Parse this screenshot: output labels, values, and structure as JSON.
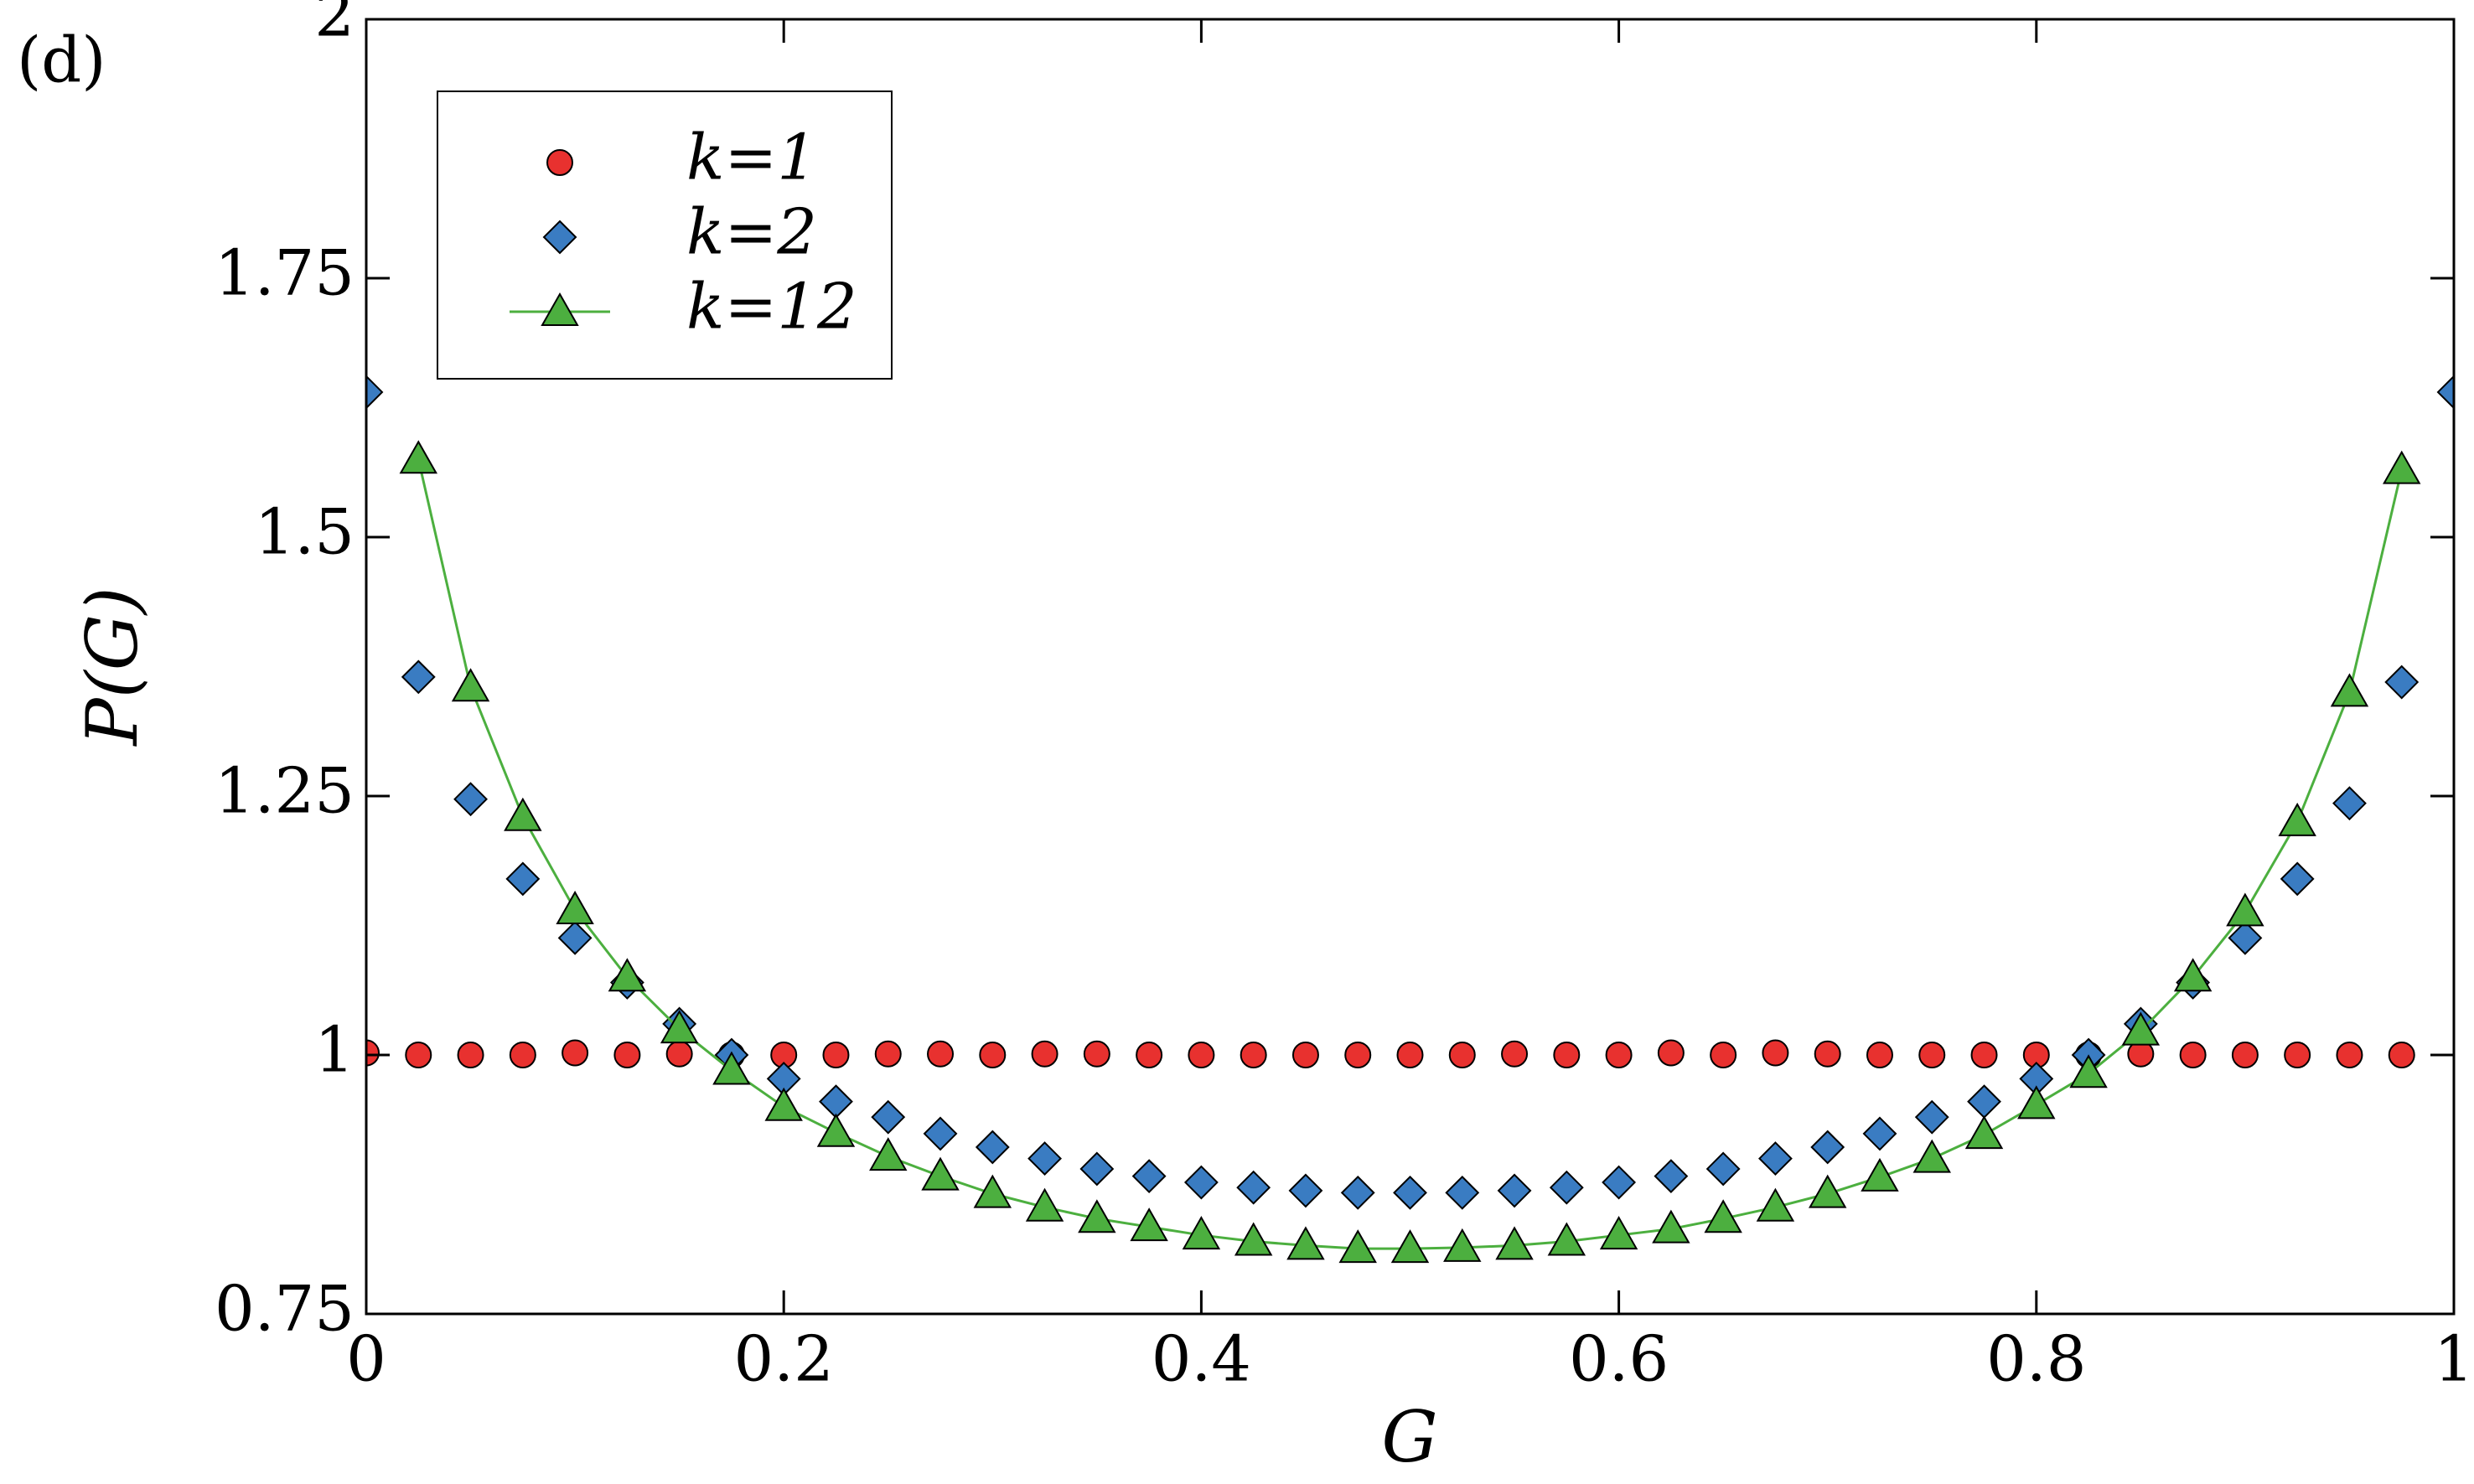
{
  "chart_data": {
    "type": "scatter",
    "panel_label": "(d)",
    "x_label": "G",
    "y_label": "P(G)",
    "xlim": [
      0,
      1
    ],
    "ylim": [
      0.75,
      2
    ],
    "xticks": [
      0,
      0.2,
      0.4,
      0.6,
      0.8,
      1
    ],
    "yticks": [
      0.75,
      1,
      1.25,
      1.5,
      1.75,
      2
    ],
    "legend": "upper left",
    "series": [
      {
        "name": "k=1",
        "color": "#e8312f",
        "marker": "circle",
        "line": false,
        "x": [
          0,
          0.025,
          0.05,
          0.075,
          0.1,
          0.125,
          0.15,
          0.175,
          0.2,
          0.225,
          0.25,
          0.275,
          0.3,
          0.325,
          0.35,
          0.375,
          0.4,
          0.425,
          0.45,
          0.475,
          0.5,
          0.525,
          0.55,
          0.575,
          0.6,
          0.625,
          0.65,
          0.675,
          0.7,
          0.725,
          0.75,
          0.775,
          0.8,
          0.825,
          0.85,
          0.875,
          0.9,
          0.925,
          0.95,
          0.975
        ],
        "values": [
          1.002,
          1.0,
          1.0,
          1.0,
          1.002,
          1.0,
          1.001,
          1.0,
          1.0,
          1.0,
          1.001,
          1.001,
          1.0,
          1.001,
          1.001,
          1.0,
          1.0,
          1.0,
          1.0,
          1.0,
          1.0,
          1.0,
          1.001,
          1.0,
          1.0,
          1.002,
          1.0,
          1.002,
          1.001,
          1.0,
          1.0,
          1.0,
          1.0,
          1.0,
          1.001,
          1.0,
          1.0,
          1.0,
          1.0,
          1.0
        ]
      },
      {
        "name": "k=2",
        "color": "#3a7cc2",
        "marker": "diamond",
        "line": false,
        "x": [
          0,
          0.025,
          0.05,
          0.075,
          0.1,
          0.125,
          0.15,
          0.175,
          0.2,
          0.225,
          0.25,
          0.275,
          0.3,
          0.325,
          0.35,
          0.375,
          0.4,
          0.425,
          0.45,
          0.475,
          0.5,
          0.525,
          0.55,
          0.575,
          0.6,
          0.625,
          0.65,
          0.675,
          0.7,
          0.725,
          0.75,
          0.775,
          0.8,
          0.825,
          0.85,
          0.875,
          0.9,
          0.925,
          0.95,
          0.975,
          1
        ],
        "values": [
          1.64,
          1.365,
          1.247,
          1.17,
          1.113,
          1.07,
          1.03,
          1.0,
          0.977,
          0.955,
          0.94,
          0.924,
          0.911,
          0.9,
          0.89,
          0.883,
          0.877,
          0.872,
          0.869,
          0.867,
          0.867,
          0.867,
          0.869,
          0.872,
          0.877,
          0.883,
          0.89,
          0.9,
          0.911,
          0.924,
          0.94,
          0.955,
          0.977,
          1.0,
          1.03,
          1.07,
          1.113,
          1.17,
          1.243,
          1.36,
          1.64
        ]
      },
      {
        "name": "k=12",
        "color": "#4caf3f",
        "marker": "triangle",
        "line": true,
        "x": [
          0.025,
          0.05,
          0.075,
          0.1,
          0.125,
          0.15,
          0.175,
          0.2,
          0.225,
          0.25,
          0.275,
          0.3,
          0.325,
          0.35,
          0.375,
          0.4,
          0.425,
          0.45,
          0.475,
          0.5,
          0.525,
          0.55,
          0.575,
          0.6,
          0.625,
          0.65,
          0.675,
          0.7,
          0.725,
          0.75,
          0.775,
          0.8,
          0.825,
          0.85,
          0.875,
          0.9,
          0.925,
          0.95,
          0.975
        ],
        "values": [
          1.575,
          1.355,
          1.23,
          1.14,
          1.075,
          1.025,
          0.985,
          0.95,
          0.925,
          0.902,
          0.883,
          0.866,
          0.853,
          0.842,
          0.834,
          0.826,
          0.82,
          0.816,
          0.813,
          0.813,
          0.814,
          0.816,
          0.82,
          0.826,
          0.832,
          0.842,
          0.853,
          0.866,
          0.882,
          0.9,
          0.923,
          0.952,
          0.982,
          1.023,
          1.075,
          1.138,
          1.225,
          1.35,
          1.565
        ]
      }
    ]
  }
}
